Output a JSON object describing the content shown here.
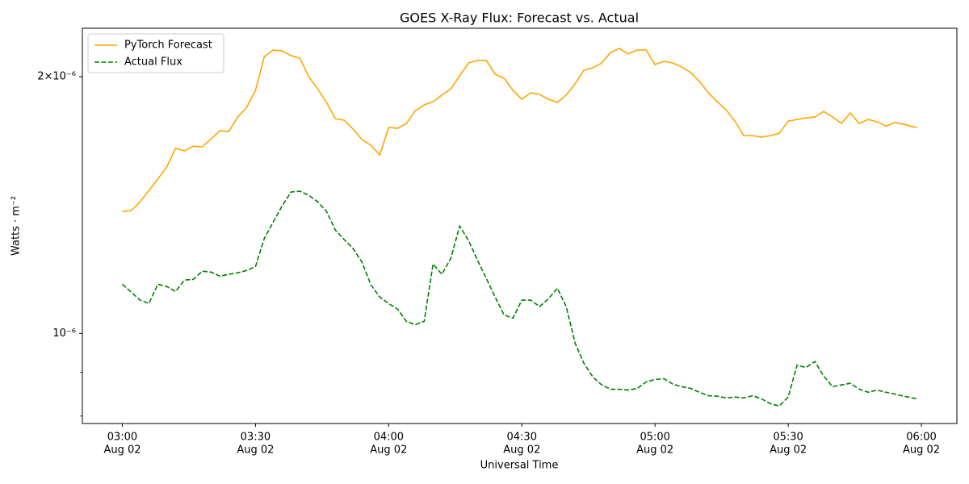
{
  "chart_data": {
    "type": "line",
    "title": "GOES X-Ray Flux: Forecast vs. Actual",
    "xlabel": "Universal Time",
    "ylabel": "Watts · m⁻²",
    "yscale": "log",
    "legend": "upper left",
    "x": [
      "Aug 02 03:00",
      "Aug 02 03:02",
      "Aug 02 03:04",
      "Aug 02 03:06",
      "Aug 02 03:08",
      "Aug 02 03:10",
      "Aug 02 03:12",
      "Aug 02 03:14",
      "Aug 02 03:16",
      "Aug 02 03:18",
      "Aug 02 03:20",
      "Aug 02 03:22",
      "Aug 02 03:24",
      "Aug 02 03:26",
      "Aug 02 03:28",
      "Aug 02 03:30",
      "Aug 02 03:32",
      "Aug 02 03:34",
      "Aug 02 03:36",
      "Aug 02 03:38",
      "Aug 02 03:40",
      "Aug 02 03:42",
      "Aug 02 03:44",
      "Aug 02 03:46",
      "Aug 02 03:48",
      "Aug 02 03:50",
      "Aug 02 03:52",
      "Aug 02 03:54",
      "Aug 02 03:56",
      "Aug 02 03:58",
      "Aug 02 04:00",
      "Aug 02 04:02",
      "Aug 02 04:04",
      "Aug 02 04:06",
      "Aug 02 04:08",
      "Aug 02 04:10",
      "Aug 02 04:12",
      "Aug 02 04:14",
      "Aug 02 04:16",
      "Aug 02 04:18",
      "Aug 02 04:20",
      "Aug 02 04:22",
      "Aug 02 04:24",
      "Aug 02 04:26",
      "Aug 02 04:28",
      "Aug 02 04:30",
      "Aug 02 04:32",
      "Aug 02 04:34",
      "Aug 02 04:36",
      "Aug 02 04:38",
      "Aug 02 04:40",
      "Aug 02 04:42",
      "Aug 02 04:44",
      "Aug 02 04:46",
      "Aug 02 04:48",
      "Aug 02 04:50",
      "Aug 02 04:52",
      "Aug 02 04:54",
      "Aug 02 04:56",
      "Aug 02 04:58",
      "Aug 02 05:00",
      "Aug 02 05:02",
      "Aug 02 05:04",
      "Aug 02 05:06",
      "Aug 02 05:08",
      "Aug 02 05:10",
      "Aug 02 05:12",
      "Aug 02 05:14",
      "Aug 02 05:16",
      "Aug 02 05:18",
      "Aug 02 05:20",
      "Aug 02 05:22",
      "Aug 02 05:24",
      "Aug 02 05:26",
      "Aug 02 05:28",
      "Aug 02 05:30",
      "Aug 02 05:32",
      "Aug 02 05:34",
      "Aug 02 05:36",
      "Aug 02 05:38",
      "Aug 02 05:40",
      "Aug 02 05:42",
      "Aug 02 05:44",
      "Aug 02 05:46",
      "Aug 02 05:48",
      "Aug 02 05:50",
      "Aug 02 05:52",
      "Aug 02 05:54",
      "Aug 02 05:56",
      "Aug 02 05:58",
      "Aug 02 05:59"
    ],
    "series": [
      {
        "name": "PyTorch Forecast",
        "color": "#ffa500",
        "linestyle": "solid",
        "values": [
          1.39e-06,
          1.393e-06,
          1.427e-06,
          1.471e-06,
          1.517e-06,
          1.567e-06,
          1.648e-06,
          1.637e-06,
          1.658e-06,
          1.655e-06,
          1.691e-06,
          1.729e-06,
          1.725e-06,
          1.794e-06,
          1.841e-06,
          1.928e-06,
          2.113e-06,
          2.15e-06,
          2.145e-06,
          2.117e-06,
          2.103e-06,
          2e-06,
          1.936e-06,
          1.866e-06,
          1.786e-06,
          1.778e-06,
          1.736e-06,
          1.688e-06,
          1.662e-06,
          1.619e-06,
          1.744e-06,
          1.74e-06,
          1.763e-06,
          1.825e-06,
          1.854e-06,
          1.87e-06,
          1.903e-06,
          1.936e-06,
          2.005e-06,
          2.076e-06,
          2.09e-06,
          2.09e-06,
          2.014e-06,
          1.992e-06,
          1.928e-06,
          1.882e-06,
          1.915e-06,
          1.907e-06,
          1.882e-06,
          1.866e-06,
          1.903e-06,
          1.962e-06,
          2.036e-06,
          2.049e-06,
          2.076e-06,
          2.136e-06,
          2.159e-06,
          2.127e-06,
          2.15e-06,
          2.15e-06,
          2.067e-06,
          2.085e-06,
          2.076e-06,
          2.054e-06,
          2.023e-06,
          1.975e-06,
          1.915e-06,
          1.87e-06,
          1.829e-06,
          1.774e-06,
          1.706e-06,
          1.706e-06,
          1.699e-06,
          1.706e-06,
          1.717e-06,
          1.774e-06,
          1.782e-06,
          1.79e-06,
          1.794e-06,
          1.821e-06,
          1.794e-06,
          1.763e-06,
          1.814e-06,
          1.763e-06,
          1.782e-06,
          1.771e-06,
          1.751e-06,
          1.767e-06,
          1.759e-06,
          1.748e-06,
          1.744e-06
        ]
      },
      {
        "name": "Actual Flux",
        "color": "#008000",
        "linestyle": "dashed",
        "values": [
          1.142e-06,
          1.118e-06,
          1.094e-06,
          1.084e-06,
          1.142e-06,
          1.135e-06,
          1.12e-06,
          1.155e-06,
          1.157e-06,
          1.183e-06,
          1.18e-06,
          1.167e-06,
          1.173e-06,
          1.178e-06,
          1.185e-06,
          1.198e-06,
          1.293e-06,
          1.351e-06,
          1.411e-06,
          1.465e-06,
          1.468e-06,
          1.452e-06,
          1.427e-06,
          1.39e-06,
          1.322e-06,
          1.288e-06,
          1.257e-06,
          1.212e-06,
          1.14e-06,
          1.103e-06,
          1.084e-06,
          1.068e-06,
          1.033e-06,
          1.024e-06,
          1.033e-06,
          1.206e-06,
          1.173e-06,
          1.225e-06,
          1.336e-06,
          1.285e-06,
          1.219e-06,
          1.16e-06,
          1.103e-06,
          1.051e-06,
          1.042e-06,
          1.094e-06,
          1.094e-06,
          1.075e-06,
          1.098e-06,
          1.13e-06,
          1.075e-06,
          9.74e-07,
          9.22e-07,
          8.89e-07,
          8.7e-07,
          8.6e-07,
          8.6e-07,
          8.58e-07,
          8.62e-07,
          8.77e-07,
          8.83e-07,
          8.85e-07,
          8.72e-07,
          8.66e-07,
          8.62e-07,
          8.53e-07,
          8.45e-07,
          8.44e-07,
          8.4e-07,
          8.42e-07,
          8.4e-07,
          8.45e-07,
          8.38e-07,
          8.27e-07,
          8.22e-07,
          8.42e-07,
          9.18e-07,
          9.12e-07,
          9.27e-07,
          8.91e-07,
          8.66e-07,
          8.7e-07,
          8.74e-07,
          8.6e-07,
          8.53e-07,
          8.58e-07,
          8.53e-07,
          8.49e-07,
          8.44e-07,
          8.4e-07,
          8.38e-07
        ]
      }
    ],
    "xlim": [
      "Aug 02 02:51",
      "Aug 02 06:08"
    ],
    "xticks": [
      {
        "value": "Aug 02 03:00",
        "label": [
          "03:00",
          "Aug 02"
        ]
      },
      {
        "value": "Aug 02 03:30",
        "label": [
          "03:30",
          "Aug 02"
        ]
      },
      {
        "value": "Aug 02 04:00",
        "label": [
          "04:00",
          "Aug 02"
        ]
      },
      {
        "value": "Aug 02 04:30",
        "label": [
          "04:30",
          "Aug 02"
        ]
      },
      {
        "value": "Aug 02 05:00",
        "label": [
          "05:00",
          "Aug 02"
        ]
      },
      {
        "value": "Aug 02 05:30",
        "label": [
          "05:30",
          "Aug 02"
        ]
      },
      {
        "value": "Aug 02 06:00",
        "label": [
          "06:00",
          "Aug 02"
        ]
      }
    ],
    "ylim": [
      7.84e-07,
      2.28e-06
    ],
    "yticks": [
      {
        "value": 1e-06,
        "label": "10⁻⁶"
      },
      {
        "value": 2e-06,
        "label": "2×10⁻⁶"
      }
    ],
    "yminorticks": [
      8e-07,
      9e-07
    ]
  }
}
